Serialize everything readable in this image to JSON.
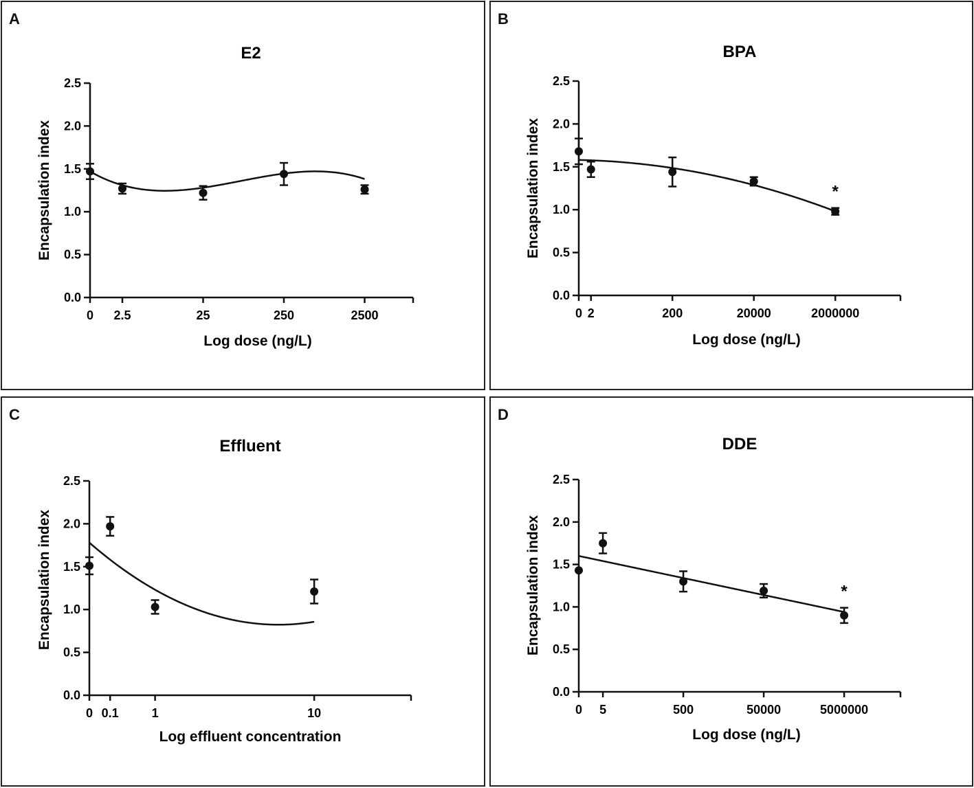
{
  "chart_data": [
    {
      "type": "scatter",
      "panel": "A",
      "title": "E2",
      "xlabel": "Log dose (ng/L)",
      "ylabel": "Encapsulation index",
      "ylim": [
        0,
        2.5
      ],
      "yticks": [
        "0.0",
        "0.5",
        "1.0",
        "1.5",
        "2.0",
        "2.5"
      ],
      "xticks": [
        "0",
        "2.5",
        "25",
        "250",
        "2500"
      ],
      "x_positions": [
        0,
        0.4,
        1.4,
        2.4,
        3.4
      ],
      "xlim": [
        0,
        4.0
      ],
      "points": [
        {
          "x": 0,
          "y": 1.47,
          "err": 0.09
        },
        {
          "x": 0.4,
          "y": 1.27,
          "err": 0.06
        },
        {
          "x": 1.4,
          "y": 1.22,
          "err": 0.08
        },
        {
          "x": 2.4,
          "y": 1.44,
          "err": 0.13
        },
        {
          "x": 3.4,
          "y": 1.26,
          "err": 0.05
        }
      ],
      "fit": {
        "model": "polynomial",
        "coef": [
          1.47,
          -0.547,
          0.3926,
          -0.0704
        ]
      },
      "annotations": []
    },
    {
      "type": "scatter",
      "panel": "B",
      "title": "BPA",
      "xlabel": "Log dose (ng/L)",
      "ylabel": "Encapsulation index",
      "ylim": [
        0,
        2.5
      ],
      "yticks": [
        "0.0",
        "0.5",
        "1.0",
        "1.5",
        "2.0",
        "2.5"
      ],
      "xticks": [
        "0",
        "2",
        "200",
        "20000",
        "2000000"
      ],
      "x_positions": [
        0,
        0.15,
        1.15,
        2.15,
        3.15
      ],
      "xlim": [
        0,
        3.95
      ],
      "points": [
        {
          "x": 0,
          "y": 1.68,
          "err": 0.15
        },
        {
          "x": 0.15,
          "y": 1.47,
          "err": 0.09
        },
        {
          "x": 1.15,
          "y": 1.44,
          "err": 0.17
        },
        {
          "x": 2.15,
          "y": 1.33,
          "err": 0.05
        },
        {
          "x": 3.15,
          "y": 0.98,
          "err": 0.04
        }
      ],
      "fit": {
        "model": "polynomial",
        "coef": [
          1.58,
          -0.02,
          -0.054
        ]
      },
      "annotations": [
        "*"
      ]
    },
    {
      "type": "scatter",
      "panel": "C",
      "title": "Effluent",
      "xlabel": "Log effluent concentration",
      "ylabel": "Encapsulation index",
      "ylim": [
        0,
        2.5
      ],
      "yticks": [
        "0.0",
        "0.5",
        "1.0",
        "1.5",
        "2.0",
        "2.5"
      ],
      "xticks": [
        "0",
        "0.1",
        "1",
        "10"
      ],
      "x_positions": [
        0,
        0.3,
        0.95,
        3.25
      ],
      "xlim": [
        0,
        4.65
      ],
      "points": [
        {
          "x": 0,
          "y": 1.51,
          "err": 0.1
        },
        {
          "x": 0.3,
          "y": 1.97,
          "err": 0.11
        },
        {
          "x": 0.95,
          "y": 1.03,
          "err": 0.08
        },
        {
          "x": 3.25,
          "y": 1.21,
          "err": 0.14
        }
      ],
      "fit": {
        "model": "polynomial",
        "coef": [
          1.78,
          -0.7,
          0.128
        ]
      },
      "annotations": []
    },
    {
      "type": "scatter",
      "panel": "D",
      "title": "DDE",
      "xlabel": "Log dose (ng/L)",
      "ylabel": "Encapsulation index",
      "ylim": [
        0,
        2.5
      ],
      "yticks": [
        "0.0",
        "0.5",
        "1.0",
        "1.5",
        "2.0",
        "2.5"
      ],
      "xticks": [
        "0",
        "5",
        "500",
        "50000",
        "5000000"
      ],
      "x_positions": [
        0,
        0.3,
        1.3,
        2.3,
        3.3
      ],
      "xlim": [
        0,
        4.0
      ],
      "points": [
        {
          "x": 0,
          "y": 1.43,
          "err": 0
        },
        {
          "x": 0.3,
          "y": 1.75,
          "err": 0.12
        },
        {
          "x": 1.3,
          "y": 1.3,
          "err": 0.12
        },
        {
          "x": 2.3,
          "y": 1.19,
          "err": 0.08
        },
        {
          "x": 3.3,
          "y": 0.9,
          "err": 0.09
        }
      ],
      "fit": {
        "model": "polynomial",
        "coef": [
          1.6,
          -0.2
        ]
      },
      "annotations": [
        "*"
      ]
    }
  ]
}
